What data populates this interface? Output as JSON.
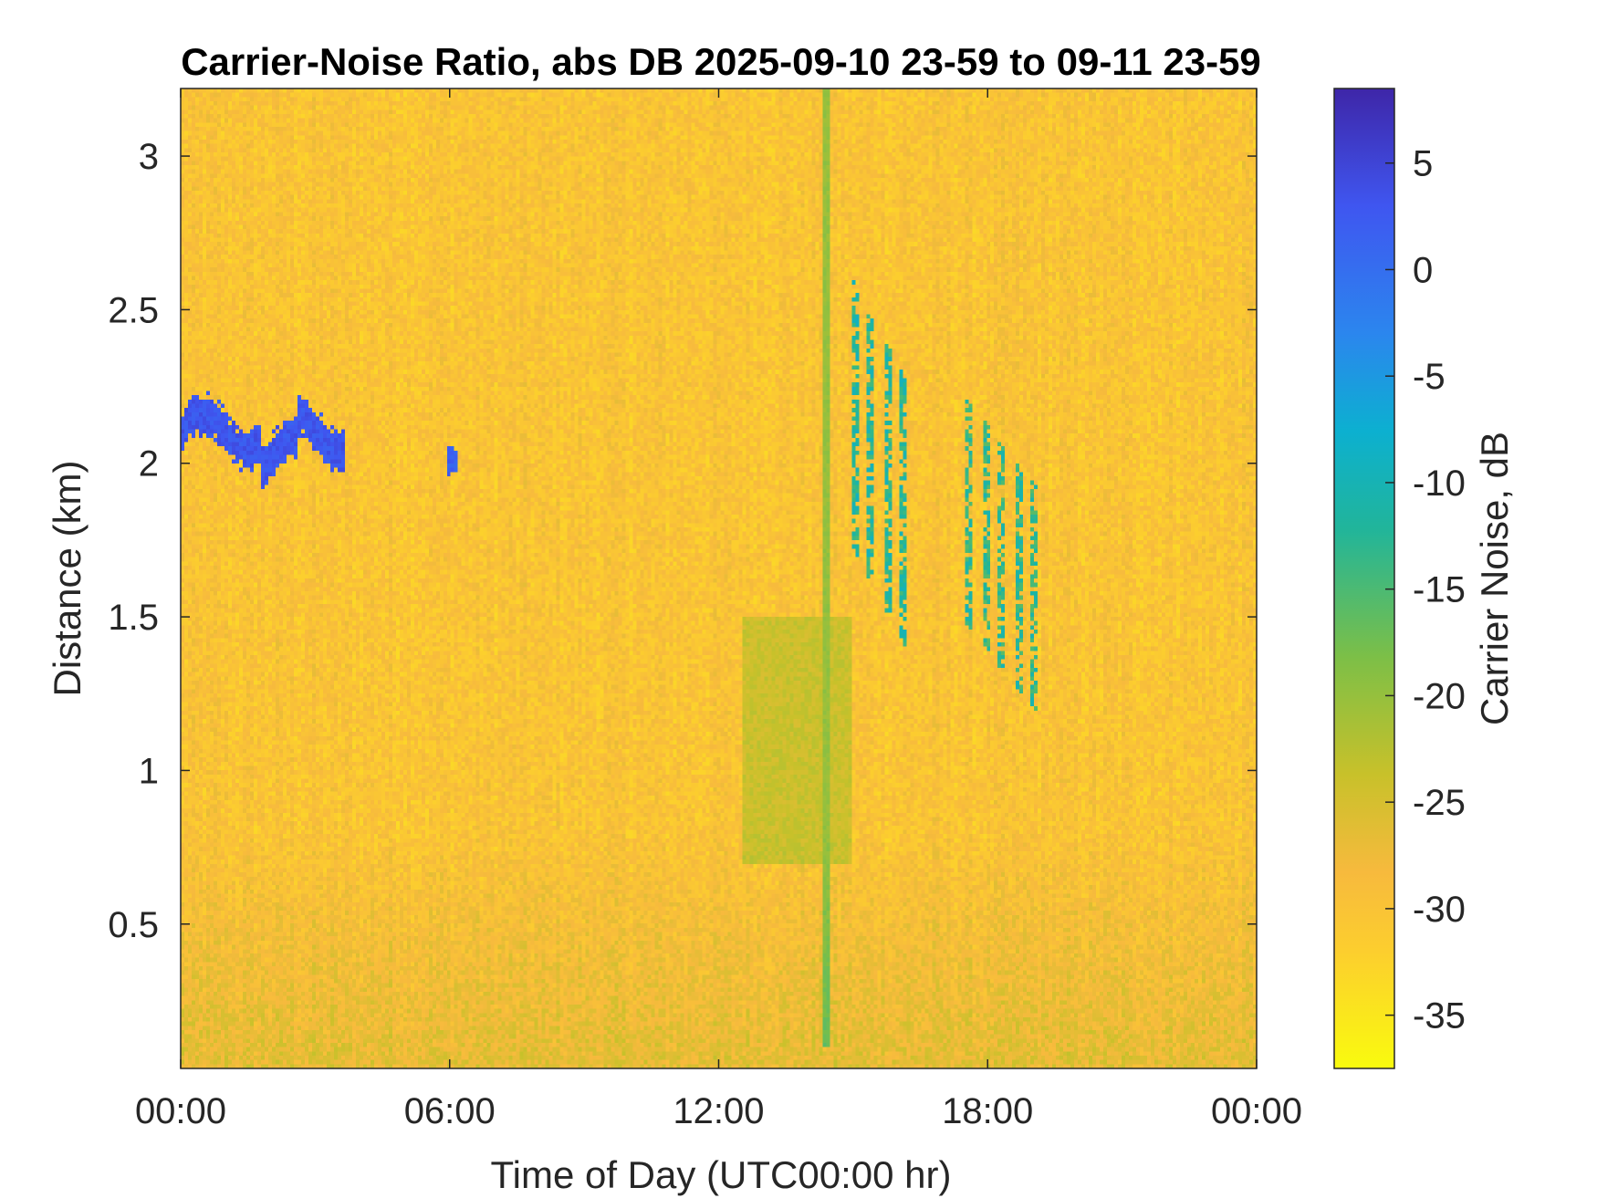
{
  "chart_data": {
    "type": "heatmap",
    "title": "Carrier-Noise Ratio, abs DB 2025-09-10 23-59 to 09-11 23-59",
    "xlabel": "Time of Day (UTC00:00 hr)",
    "ylabel": "Distance (km)",
    "x_ticks": [
      {
        "value": 0,
        "label": "00:00"
      },
      {
        "value": 6,
        "label": "06:00"
      },
      {
        "value": 12,
        "label": "12:00"
      },
      {
        "value": 18,
        "label": "18:00"
      },
      {
        "value": 24,
        "label": "00:00"
      }
    ],
    "y_ticks": [
      {
        "value": 0.5,
        "label": "0.5"
      },
      {
        "value": 1.0,
        "label": "1"
      },
      {
        "value": 1.5,
        "label": "1.5"
      },
      {
        "value": 2.0,
        "label": "2"
      },
      {
        "value": 2.5,
        "label": "2.5"
      },
      {
        "value": 3.0,
        "label": "3"
      }
    ],
    "xlim_hours": [
      0,
      24
    ],
    "ylim_km": [
      0.03,
      3.22
    ],
    "colorbar": {
      "label": "Carrier Noise, dB",
      "range": [
        -37.5,
        8.5
      ],
      "ticks": [
        {
          "value": 5,
          "label": "5"
        },
        {
          "value": 0,
          "label": "0"
        },
        {
          "value": -5,
          "label": "-5"
        },
        {
          "value": -10,
          "label": "-10"
        },
        {
          "value": -15,
          "label": "-15"
        },
        {
          "value": -20,
          "label": "-20"
        },
        {
          "value": -25,
          "label": "-25"
        },
        {
          "value": -30,
          "label": "-30"
        },
        {
          "value": -35,
          "label": "-35"
        }
      ]
    },
    "background_level_db": -30,
    "features": [
      {
        "kind": "strong-return-band",
        "t_start": 0.0,
        "t_end": 3.7,
        "d_center": 2.1,
        "d_width": 0.12,
        "level_db": 3
      },
      {
        "kind": "strong-return-spot",
        "t_start": 5.95,
        "t_end": 6.2,
        "d_center": 2.01,
        "d_width": 0.08,
        "level_db": 2
      },
      {
        "kind": "vertical-streak",
        "t": 14.4,
        "d_start": 0.1,
        "d_end": 3.22,
        "level_db": -20
      },
      {
        "kind": "streaks",
        "t_start": 14.8,
        "t_end": 16.4,
        "d_start": 1.4,
        "d_end": 2.65,
        "level_db": -12
      },
      {
        "kind": "streaks",
        "t_start": 17.3,
        "t_end": 19.3,
        "d_start": 1.2,
        "d_end": 2.25,
        "level_db": -13
      },
      {
        "kind": "weak-return-region",
        "t_start": 12.5,
        "t_end": 15.0,
        "d_start": 0.7,
        "d_end": 1.5,
        "level_db": -24
      },
      {
        "kind": "near-ground-layer",
        "t_start": 0,
        "t_end": 24,
        "d_start": 0.03,
        "d_end": 0.8,
        "level_db": -26
      }
    ]
  }
}
